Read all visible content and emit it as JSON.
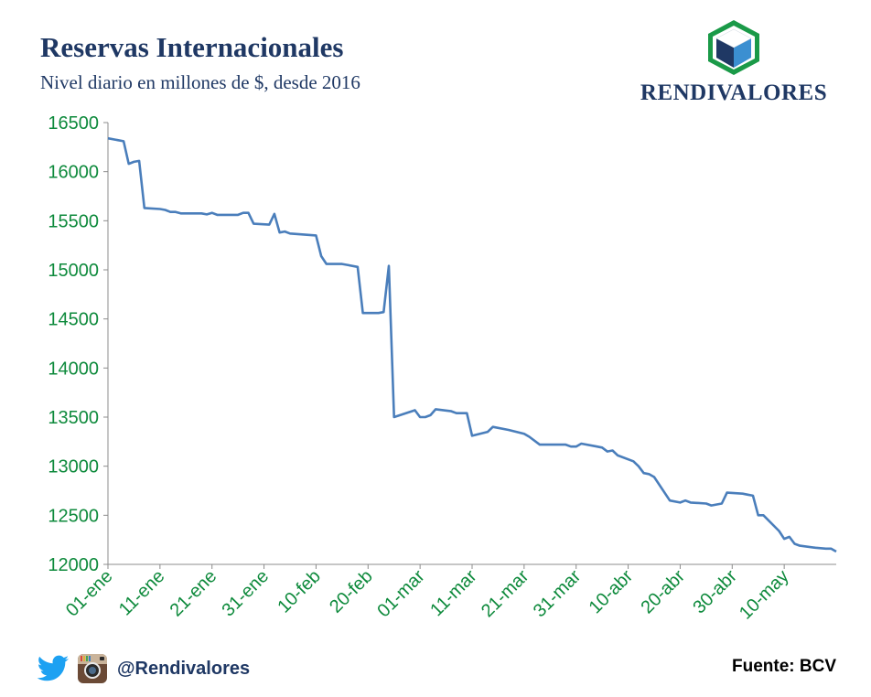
{
  "header": {
    "title": "Reservas Internacionales",
    "subtitle": "Nivel diario en millones de $, desde 2016"
  },
  "brand": {
    "name": "RENDIVALORES",
    "colors": {
      "green": "#1a9a48",
      "cube_dark": "#1f3864",
      "cube_light": "#3b8fd1",
      "cube_top": "#ffffff"
    }
  },
  "footer": {
    "handle": "@Rendivalores",
    "source": "Fuente: BCV",
    "icons": [
      "twitter-icon",
      "instagram-icon"
    ]
  },
  "chart_data": {
    "type": "line",
    "title": "Reservas Internacionales",
    "subtitle": "Nivel diario en millones de $, desde 2016",
    "xlabel": "",
    "ylabel": "",
    "ylim": [
      12000,
      16500
    ],
    "yticks": [
      12000,
      12500,
      13000,
      13500,
      14000,
      14500,
      15000,
      15500,
      16000,
      16500
    ],
    "xlim": [
      "2016-01-01",
      "2016-05-20"
    ],
    "xticks": [
      {
        "date": "2016-01-01",
        "label": "01-ene"
      },
      {
        "date": "2016-01-11",
        "label": "11-ene"
      },
      {
        "date": "2016-01-21",
        "label": "21-ene"
      },
      {
        "date": "2016-01-31",
        "label": "31-ene"
      },
      {
        "date": "2016-02-10",
        "label": "10-feb"
      },
      {
        "date": "2016-02-20",
        "label": "20-feb"
      },
      {
        "date": "2016-03-01",
        "label": "01-mar"
      },
      {
        "date": "2016-03-11",
        "label": "11-mar"
      },
      {
        "date": "2016-03-21",
        "label": "21-mar"
      },
      {
        "date": "2016-03-31",
        "label": "31-mar"
      },
      {
        "date": "2016-04-10",
        "label": "10-abr"
      },
      {
        "date": "2016-04-20",
        "label": "20-abr"
      },
      {
        "date": "2016-04-30",
        "label": "30-abr"
      },
      {
        "date": "2016-05-10",
        "label": "10-may"
      }
    ],
    "grid": false,
    "legend": "none",
    "series_color": "#4a7ebb",
    "tick_color": "#0e8a3c",
    "series": [
      {
        "points": [
          [
            "2016-01-01",
            16340
          ],
          [
            "2016-01-04",
            16310
          ],
          [
            "2016-01-05",
            16080
          ],
          [
            "2016-01-06",
            16100
          ],
          [
            "2016-01-07",
            16110
          ],
          [
            "2016-01-08",
            15630
          ],
          [
            "2016-01-11",
            15620
          ],
          [
            "2016-01-12",
            15610
          ],
          [
            "2016-01-13",
            15590
          ],
          [
            "2016-01-14",
            15590
          ],
          [
            "2016-01-15",
            15575
          ],
          [
            "2016-01-19",
            15575
          ],
          [
            "2016-01-20",
            15565
          ],
          [
            "2016-01-21",
            15580
          ],
          [
            "2016-01-22",
            15560
          ],
          [
            "2016-01-26",
            15560
          ],
          [
            "2016-01-27",
            15580
          ],
          [
            "2016-01-28",
            15580
          ],
          [
            "2016-01-29",
            15470
          ],
          [
            "2016-02-01",
            15460
          ],
          [
            "2016-02-02",
            15570
          ],
          [
            "2016-02-03",
            15380
          ],
          [
            "2016-02-04",
            15390
          ],
          [
            "2016-02-05",
            15370
          ],
          [
            "2016-02-10",
            15350
          ],
          [
            "2016-02-11",
            15140
          ],
          [
            "2016-02-12",
            15060
          ],
          [
            "2016-02-15",
            15060
          ],
          [
            "2016-02-16",
            15050
          ],
          [
            "2016-02-18",
            15030
          ],
          [
            "2016-02-19",
            14560
          ],
          [
            "2016-02-22",
            14560
          ],
          [
            "2016-02-23",
            14570
          ],
          [
            "2016-02-24",
            15040
          ],
          [
            "2016-02-25",
            13500
          ],
          [
            "2016-02-29",
            13570
          ],
          [
            "2016-03-01",
            13500
          ],
          [
            "2016-03-02",
            13500
          ],
          [
            "2016-03-03",
            13520
          ],
          [
            "2016-03-04",
            13580
          ],
          [
            "2016-03-07",
            13560
          ],
          [
            "2016-03-08",
            13540
          ],
          [
            "2016-03-10",
            13540
          ],
          [
            "2016-03-11",
            13310
          ],
          [
            "2016-03-14",
            13350
          ],
          [
            "2016-03-15",
            13400
          ],
          [
            "2016-03-18",
            13370
          ],
          [
            "2016-03-21",
            13330
          ],
          [
            "2016-03-22",
            13300
          ],
          [
            "2016-03-24",
            13220
          ],
          [
            "2016-03-29",
            13220
          ],
          [
            "2016-03-30",
            13200
          ],
          [
            "2016-03-31",
            13200
          ],
          [
            "2016-04-01",
            13230
          ],
          [
            "2016-04-04",
            13200
          ],
          [
            "2016-04-05",
            13190
          ],
          [
            "2016-04-06",
            13150
          ],
          [
            "2016-04-07",
            13160
          ],
          [
            "2016-04-08",
            13110
          ],
          [
            "2016-04-11",
            13050
          ],
          [
            "2016-04-12",
            13000
          ],
          [
            "2016-04-13",
            12930
          ],
          [
            "2016-04-14",
            12920
          ],
          [
            "2016-04-15",
            12890
          ],
          [
            "2016-04-18",
            12650
          ],
          [
            "2016-04-20",
            12630
          ],
          [
            "2016-04-21",
            12650
          ],
          [
            "2016-04-22",
            12630
          ],
          [
            "2016-04-25",
            12620
          ],
          [
            "2016-04-26",
            12600
          ],
          [
            "2016-04-28",
            12620
          ],
          [
            "2016-04-29",
            12730
          ],
          [
            "2016-05-02",
            12720
          ],
          [
            "2016-05-03",
            12710
          ],
          [
            "2016-05-04",
            12700
          ],
          [
            "2016-05-05",
            12500
          ],
          [
            "2016-05-06",
            12500
          ],
          [
            "2016-05-09",
            12340
          ],
          [
            "2016-05-10",
            12260
          ],
          [
            "2016-05-11",
            12280
          ],
          [
            "2016-05-12",
            12210
          ],
          [
            "2016-05-13",
            12190
          ],
          [
            "2016-05-16",
            12170
          ],
          [
            "2016-05-18",
            12160
          ],
          [
            "2016-05-19",
            12160
          ],
          [
            "2016-05-20",
            12130
          ]
        ]
      }
    ]
  }
}
